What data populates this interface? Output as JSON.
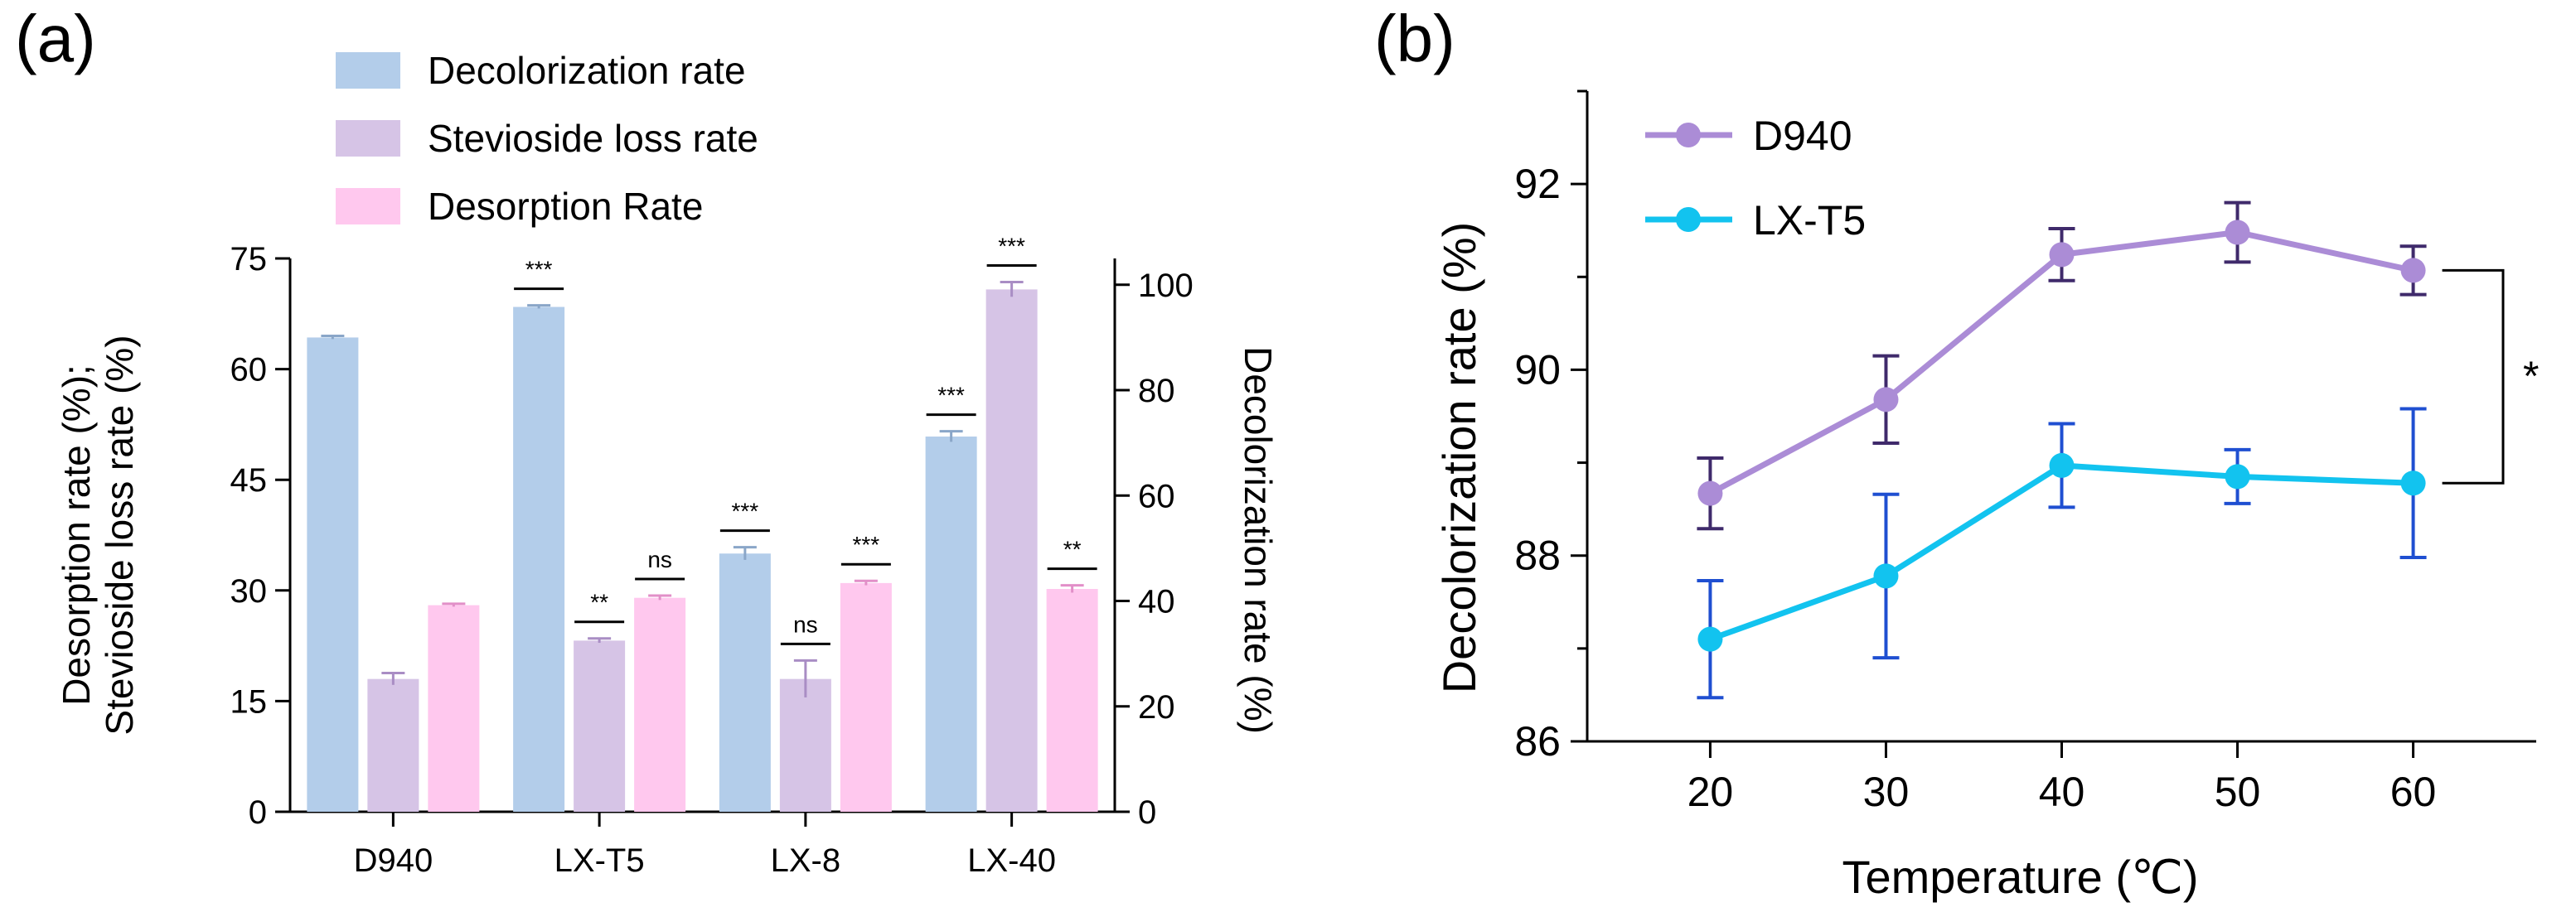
{
  "panel_a_label": "(a)",
  "panel_b_label": "(b)",
  "colors": {
    "decolorization": "#b3cdea",
    "decolorization_err": "#8aa6c8",
    "stevioside": "#d6c4e6",
    "stevioside_err": "#a98dc4",
    "desorption": "#ffc8ee",
    "desorption_err": "#e28fc8",
    "d940_line": "#ab8cd6",
    "d940_err": "#3f2a6b",
    "lxt5_line": "#12c3ef",
    "lxt5_err": "#1f4fd1"
  },
  "chart_data": [
    {
      "type": "bar",
      "title": "(a)",
      "categories": [
        "D940",
        "LX-T5",
        "LX-8",
        "LX-40"
      ],
      "ylabel_left": [
        "Desorption rate (%);",
        "Stevioside loss rate (%)"
      ],
      "ylabel_right": "Decolorization rate (%)",
      "ylim_left": [
        0,
        75
      ],
      "yticks_left": [
        "0",
        "15",
        "30",
        "45",
        "60",
        "75"
      ],
      "ylim_right": [
        0,
        105
      ],
      "yticks_right": [
        "0",
        "20",
        "40",
        "60",
        "80",
        "100"
      ],
      "series": [
        {
          "name": "Decolorization rate",
          "axis": "right",
          "values": [
            90.0,
            95.8,
            49.0,
            71.2
          ],
          "errors": [
            0.3,
            0.3,
            1.2,
            1.0
          ],
          "significance": [
            "",
            "***",
            "***",
            "***"
          ]
        },
        {
          "name": "Stevioside loss rate",
          "axis": "left",
          "values": [
            18.0,
            23.2,
            18.0,
            70.8
          ],
          "errors": [
            0.8,
            0.3,
            2.5,
            1.0
          ],
          "significance": [
            "",
            "**",
            "ns",
            "***"
          ]
        },
        {
          "name": "Desorption Rate",
          "axis": "left",
          "values": [
            28.0,
            29.0,
            31.0,
            30.2
          ],
          "errors": [
            0.2,
            0.3,
            0.3,
            0.5
          ],
          "significance": [
            "",
            "ns",
            "***",
            "**"
          ]
        }
      ],
      "legend": [
        "Decolorization rate",
        "Stevioside loss rate",
        "Desorption Rate"
      ],
      "legend_position": "top"
    },
    {
      "type": "line",
      "title": "(b)",
      "xlabel": "Temperature (℃)",
      "ylabel": "Decolorization rate (%)",
      "x": [
        20,
        30,
        40,
        50,
        60
      ],
      "xticks": [
        "20",
        "30",
        "40",
        "50",
        "60"
      ],
      "xlim": [
        13,
        67
      ],
      "ylim": [
        86,
        93
      ],
      "yticks": [
        "86",
        "88",
        "90",
        "92"
      ],
      "series": [
        {
          "name": "D940",
          "values": [
            88.67,
            89.68,
            91.24,
            91.48,
            91.07
          ],
          "errors": [
            0.38,
            0.47,
            0.28,
            0.32,
            0.26
          ]
        },
        {
          "name": "LX-T5",
          "values": [
            87.1,
            87.78,
            88.97,
            88.85,
            88.78
          ],
          "errors": [
            0.63,
            0.88,
            0.45,
            0.29,
            0.8
          ]
        }
      ],
      "legend": [
        "D940",
        "LX-T5"
      ],
      "legend_position": "top-left",
      "annotation": "*"
    }
  ]
}
